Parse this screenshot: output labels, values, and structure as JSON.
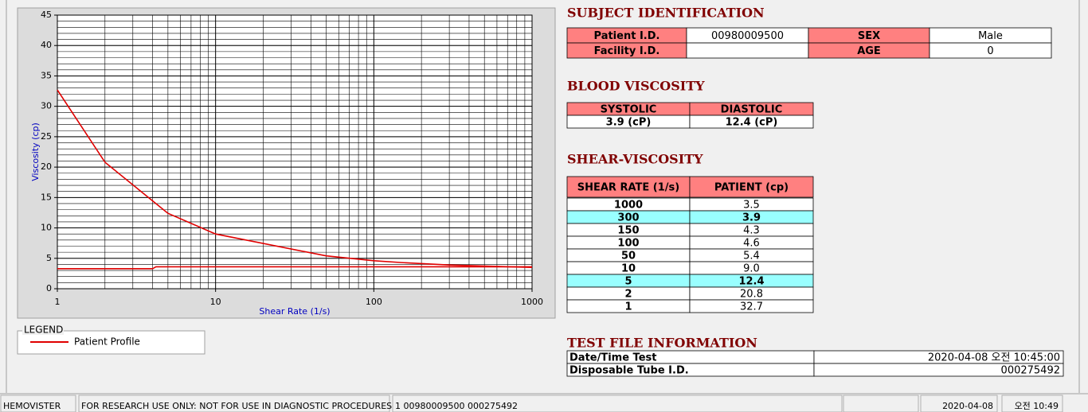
{
  "chart_data": {
    "type": "line",
    "xlabel": "Shear Rate (1/s)",
    "ylabel": "Viscosity (cp)",
    "log_x": true,
    "grid": true,
    "minor_grid": true,
    "xlim": [
      1,
      1000
    ],
    "xticks": [
      1,
      10,
      100,
      1000
    ],
    "ylim": [
      0,
      45
    ],
    "yticks": [
      0,
      5,
      10,
      15,
      20,
      25,
      30,
      35,
      40,
      45
    ],
    "legend_title": "LEGEND",
    "series": [
      {
        "name": "Patient Profile",
        "color": "#e00000",
        "x": [
          1,
          2,
          5,
          10,
          50,
          100,
          150,
          300,
          1000
        ],
        "values": [
          32.7,
          20.8,
          12.4,
          9.0,
          5.4,
          4.6,
          4.3,
          3.9,
          3.5
        ]
      },
      {
        "color": "#e00000",
        "x": [
          1,
          4,
          4.2,
          1000
        ],
        "values": [
          3.3,
          3.3,
          3.6,
          3.6
        ]
      }
    ]
  },
  "subject": {
    "title": "SUBJECT IDENTIFICATION",
    "patient_id_label": "Patient I.D.",
    "patient_id": "00980009500",
    "sex_label": "SEX",
    "sex": "Male",
    "facility_label": "Facility I.D.",
    "age_label": "AGE",
    "age": "0"
  },
  "blood": {
    "title": "BLOOD VISCOSITY",
    "systolic_label": "SYSTOLIC",
    "diastolic_label": "DIASTOLIC",
    "systolic": "3.9 (cP)",
    "diastolic": "12.4 (cP)"
  },
  "shear": {
    "title": "SHEAR-VISCOSITY",
    "header": [
      "SHEAR RATE (1/s)",
      "PATIENT (cp)"
    ],
    "rows": [
      {
        "cells": [
          "1000",
          "3.5"
        ]
      },
      {
        "cells": [
          "300",
          "3.9"
        ],
        "highlight": true
      },
      {
        "cells": [
          "150",
          "4.3"
        ]
      },
      {
        "cells": [
          "100",
          "4.6"
        ]
      },
      {
        "cells": [
          "50",
          "5.4"
        ]
      },
      {
        "cells": [
          "10",
          "9.0"
        ]
      },
      {
        "cells": [
          "5",
          "12.4"
        ],
        "highlight": true
      },
      {
        "cells": [
          "2",
          "20.8"
        ]
      },
      {
        "cells": [
          "1",
          "32.7"
        ]
      }
    ]
  },
  "test_file": {
    "title": "TEST FILE INFORMATION",
    "date_label": "Date/Time Test",
    "date": "2020-04-08   오전 10:45:00",
    "tube_label": "Disposable Tube I.D.",
    "tube": "000275492"
  },
  "status_bar": [
    "HEMOVISTER",
    "FOR RESEARCH USE ONLY: NOT FOR USE IN DIAGNOSTIC PROCEDURES",
    "1  00980009500  000275492",
    "2020-04-08",
    "오전 10:49"
  ]
}
